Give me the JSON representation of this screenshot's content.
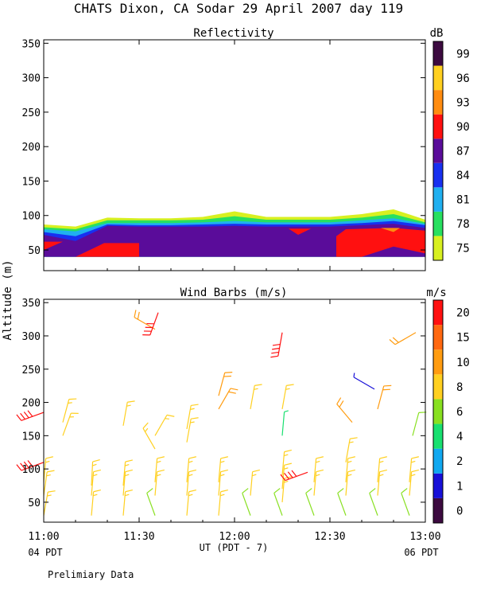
{
  "header": {
    "title": "CHATS Dixon, CA  Sodar  29 April 2007  day 119",
    "preliminary": "Prelimiary Data"
  },
  "axes": {
    "ylabel": "Altitude (m)",
    "xlabel": "UT  (PDT - 7)",
    "left_date_label": "04 PDT",
    "right_date_label": "06 PDT",
    "x_ticks": [
      "11:00",
      "11:30",
      "12:00",
      "12:30",
      "13:00"
    ],
    "y_ticks": [
      "50",
      "100",
      "150",
      "200",
      "250",
      "300",
      "350"
    ]
  },
  "chart_data": [
    {
      "type": "area",
      "title": "Reflectivity",
      "colorbar_unit": "dB",
      "x_range": [
        "11:00",
        "13:00"
      ],
      "ylim": [
        20,
        355
      ],
      "y_data_min": 40,
      "colorbar": {
        "levels": [
          "75",
          "78",
          "81",
          "84",
          "87",
          "90",
          "93",
          "96",
          "99"
        ],
        "colors": [
          "#d8f020",
          "#28e060",
          "#20b0f0",
          "#1830f0",
          "#5a0c9a",
          "#ff1010",
          "#ff8c10",
          "#ffd020",
          "#3c0a40"
        ]
      },
      "layers": [
        {
          "color": "#d8f020",
          "x": [
            0,
            10,
            20,
            30,
            40,
            50,
            60,
            70,
            80,
            90,
            100,
            110,
            120
          ],
          "top": [
            87,
            84,
            97,
            96,
            96,
            98,
            106,
            98,
            98,
            98,
            102,
            109,
            94
          ]
        },
        {
          "color": "#28e060",
          "x": [
            0,
            10,
            20,
            30,
            40,
            50,
            60,
            70,
            80,
            90,
            100,
            110,
            120
          ],
          "top": [
            83,
            80,
            93,
            93,
            93,
            94,
            99,
            94,
            94,
            94,
            97,
            102,
            90
          ]
        },
        {
          "color": "#20b0f0",
          "x": [
            0,
            10,
            20,
            30,
            40,
            50,
            60,
            70,
            80,
            90,
            100,
            110,
            120
          ],
          "top": [
            80,
            77,
            89,
            89,
            89,
            90,
            92,
            90,
            90,
            90,
            93,
            96,
            88
          ]
        },
        {
          "color": "#1830f0",
          "x": [
            0,
            10,
            20,
            30,
            40,
            50,
            60,
            70,
            80,
            90,
            100,
            110,
            120
          ],
          "top": [
            76,
            70,
            87,
            86,
            86,
            87,
            88,
            87,
            87,
            87,
            89,
            92,
            86
          ]
        },
        {
          "color": "#5a0c9a",
          "x": [
            0,
            10,
            20,
            30,
            40,
            50,
            60,
            70,
            80,
            90,
            100,
            110,
            120
          ],
          "top": [
            72,
            63,
            85,
            84,
            84,
            84,
            85,
            84,
            84,
            84,
            86,
            88,
            82
          ]
        }
      ],
      "patches": [
        {
          "color": "#ff1010",
          "points": [
            [
              0,
              40
            ],
            [
              0,
              62
            ],
            [
              6,
              62
            ],
            [
              0,
              50
            ]
          ]
        },
        {
          "color": "#ff1010",
          "points": [
            [
              10,
              40
            ],
            [
              19,
              60
            ],
            [
              30,
              60
            ],
            [
              30,
              40
            ]
          ]
        },
        {
          "color": "#ff1010",
          "points": [
            [
              77,
              81
            ],
            [
              84,
              81
            ],
            [
              80,
              72
            ]
          ]
        },
        {
          "color": "#ff1010",
          "points": [
            [
              92,
              40
            ],
            [
              92,
              70
            ],
            [
              95,
              80
            ],
            [
              110,
              82
            ],
            [
              120,
              78
            ],
            [
              120,
              45
            ],
            [
              110,
              55
            ],
            [
              100,
              40
            ]
          ]
        },
        {
          "color": "#ff8c10",
          "points": [
            [
              106,
              82
            ],
            [
              112,
              82
            ],
            [
              110,
              76
            ]
          ]
        }
      ]
    },
    {
      "type": "scatter",
      "title": "Wind Barbs (m/s)",
      "colorbar_unit": "m/s",
      "x_range": [
        "11:00",
        "13:00"
      ],
      "ylim": [
        20,
        355
      ],
      "colorbar": {
        "levels": [
          "0",
          "1",
          "2",
          "4",
          "6",
          "8",
          "10",
          "15",
          "20"
        ],
        "colors": [
          "#3c0a40",
          "#1810d8",
          "#10a8f0",
          "#18e070",
          "#88e020",
          "#ffd020",
          "#ff9c10",
          "#ff6810",
          "#ff1010"
        ]
      },
      "barbs": [
        {
          "t": 0,
          "z": 30,
          "speed": 8,
          "dir": 10
        },
        {
          "t": 0,
          "z": 60,
          "speed": 8,
          "dir": 8
        },
        {
          "t": 0,
          "z": 80,
          "speed": 8,
          "dir": 5
        },
        {
          "t": 0,
          "z": 110,
          "speed": 20,
          "dir": 250
        },
        {
          "t": 0,
          "z": 185,
          "speed": 20,
          "dir": 250
        },
        {
          "t": 6,
          "z": 150,
          "speed": 8,
          "dir": 20
        },
        {
          "t": 6,
          "z": 170,
          "speed": 8,
          "dir": 15
        },
        {
          "t": 15,
          "z": 30,
          "speed": 8,
          "dir": 5
        },
        {
          "t": 15,
          "z": 60,
          "speed": 8,
          "dir": 5
        },
        {
          "t": 15,
          "z": 75,
          "speed": 8,
          "dir": 3
        },
        {
          "t": 25,
          "z": 30,
          "speed": 8,
          "dir": 5
        },
        {
          "t": 25,
          "z": 60,
          "speed": 8,
          "dir": 5
        },
        {
          "t": 25,
          "z": 75,
          "speed": 8,
          "dir": 5
        },
        {
          "t": 25,
          "z": 165,
          "speed": 8,
          "dir": 10
        },
        {
          "t": 35,
          "z": 30,
          "speed": 6,
          "dir": 340
        },
        {
          "t": 35,
          "z": 60,
          "speed": 8,
          "dir": 5
        },
        {
          "t": 35,
          "z": 80,
          "speed": 8,
          "dir": 5
        },
        {
          "t": 35,
          "z": 130,
          "speed": 8,
          "dir": 330
        },
        {
          "t": 35,
          "z": 150,
          "speed": 8,
          "dir": 30
        },
        {
          "t": 35,
          "z": 310,
          "speed": 10,
          "dir": 300
        },
        {
          "t": 36,
          "z": 335,
          "speed": 20,
          "dir": 200
        },
        {
          "t": 45,
          "z": 30,
          "speed": 8,
          "dir": 5
        },
        {
          "t": 45,
          "z": 60,
          "speed": 8,
          "dir": 5
        },
        {
          "t": 45,
          "z": 80,
          "speed": 8,
          "dir": 5
        },
        {
          "t": 45,
          "z": 140,
          "speed": 8,
          "dir": 10
        },
        {
          "t": 45,
          "z": 160,
          "speed": 8,
          "dir": 10
        },
        {
          "t": 55,
          "z": 30,
          "speed": 8,
          "dir": 5
        },
        {
          "t": 55,
          "z": 60,
          "speed": 8,
          "dir": 5
        },
        {
          "t": 55,
          "z": 80,
          "speed": 8,
          "dir": 5
        },
        {
          "t": 55,
          "z": 190,
          "speed": 10,
          "dir": 30
        },
        {
          "t": 55,
          "z": 210,
          "speed": 10,
          "dir": 15
        },
        {
          "t": 65,
          "z": 30,
          "speed": 6,
          "dir": 340
        },
        {
          "t": 65,
          "z": 60,
          "speed": 8,
          "dir": 5
        },
        {
          "t": 65,
          "z": 190,
          "speed": 8,
          "dir": 10
        },
        {
          "t": 75,
          "z": 30,
          "speed": 6,
          "dir": 340
        },
        {
          "t": 75,
          "z": 50,
          "speed": 8,
          "dir": 5
        },
        {
          "t": 75,
          "z": 70,
          "speed": 8,
          "dir": 5
        },
        {
          "t": 75,
          "z": 90,
          "speed": 8,
          "dir": 5
        },
        {
          "t": 75,
          "z": 150,
          "speed": 4,
          "dir": 5
        },
        {
          "t": 75,
          "z": 190,
          "speed": 8,
          "dir": 10
        },
        {
          "t": 75,
          "z": 305,
          "speed": 20,
          "dir": 190
        },
        {
          "t": 83,
          "z": 95,
          "speed": 20,
          "dir": 250
        },
        {
          "t": 85,
          "z": 30,
          "speed": 6,
          "dir": 340
        },
        {
          "t": 85,
          "z": 60,
          "speed": 8,
          "dir": 5
        },
        {
          "t": 85,
          "z": 80,
          "speed": 8,
          "dir": 5
        },
        {
          "t": 95,
          "z": 30,
          "speed": 6,
          "dir": 340
        },
        {
          "t": 95,
          "z": 60,
          "speed": 8,
          "dir": 5
        },
        {
          "t": 95,
          "z": 80,
          "speed": 8,
          "dir": 5
        },
        {
          "t": 95,
          "z": 110,
          "speed": 8,
          "dir": 10
        },
        {
          "t": 97,
          "z": 170,
          "speed": 10,
          "dir": 320
        },
        {
          "t": 105,
          "z": 190,
          "speed": 10,
          "dir": 15
        },
        {
          "t": 104,
          "z": 220,
          "speed": 1,
          "dir": 300
        },
        {
          "t": 105,
          "z": 30,
          "speed": 6,
          "dir": 340
        },
        {
          "t": 105,
          "z": 60,
          "speed": 8,
          "dir": 5
        },
        {
          "t": 105,
          "z": 80,
          "speed": 8,
          "dir": 5
        },
        {
          "t": 115,
          "z": 30,
          "speed": 6,
          "dir": 340
        },
        {
          "t": 115,
          "z": 60,
          "speed": 8,
          "dir": 5
        },
        {
          "t": 115,
          "z": 80,
          "speed": 8,
          "dir": 5
        },
        {
          "t": 116,
          "z": 150,
          "speed": 6,
          "dir": 15
        },
        {
          "t": 117,
          "z": 305,
          "speed": 10,
          "dir": 240
        }
      ]
    }
  ]
}
